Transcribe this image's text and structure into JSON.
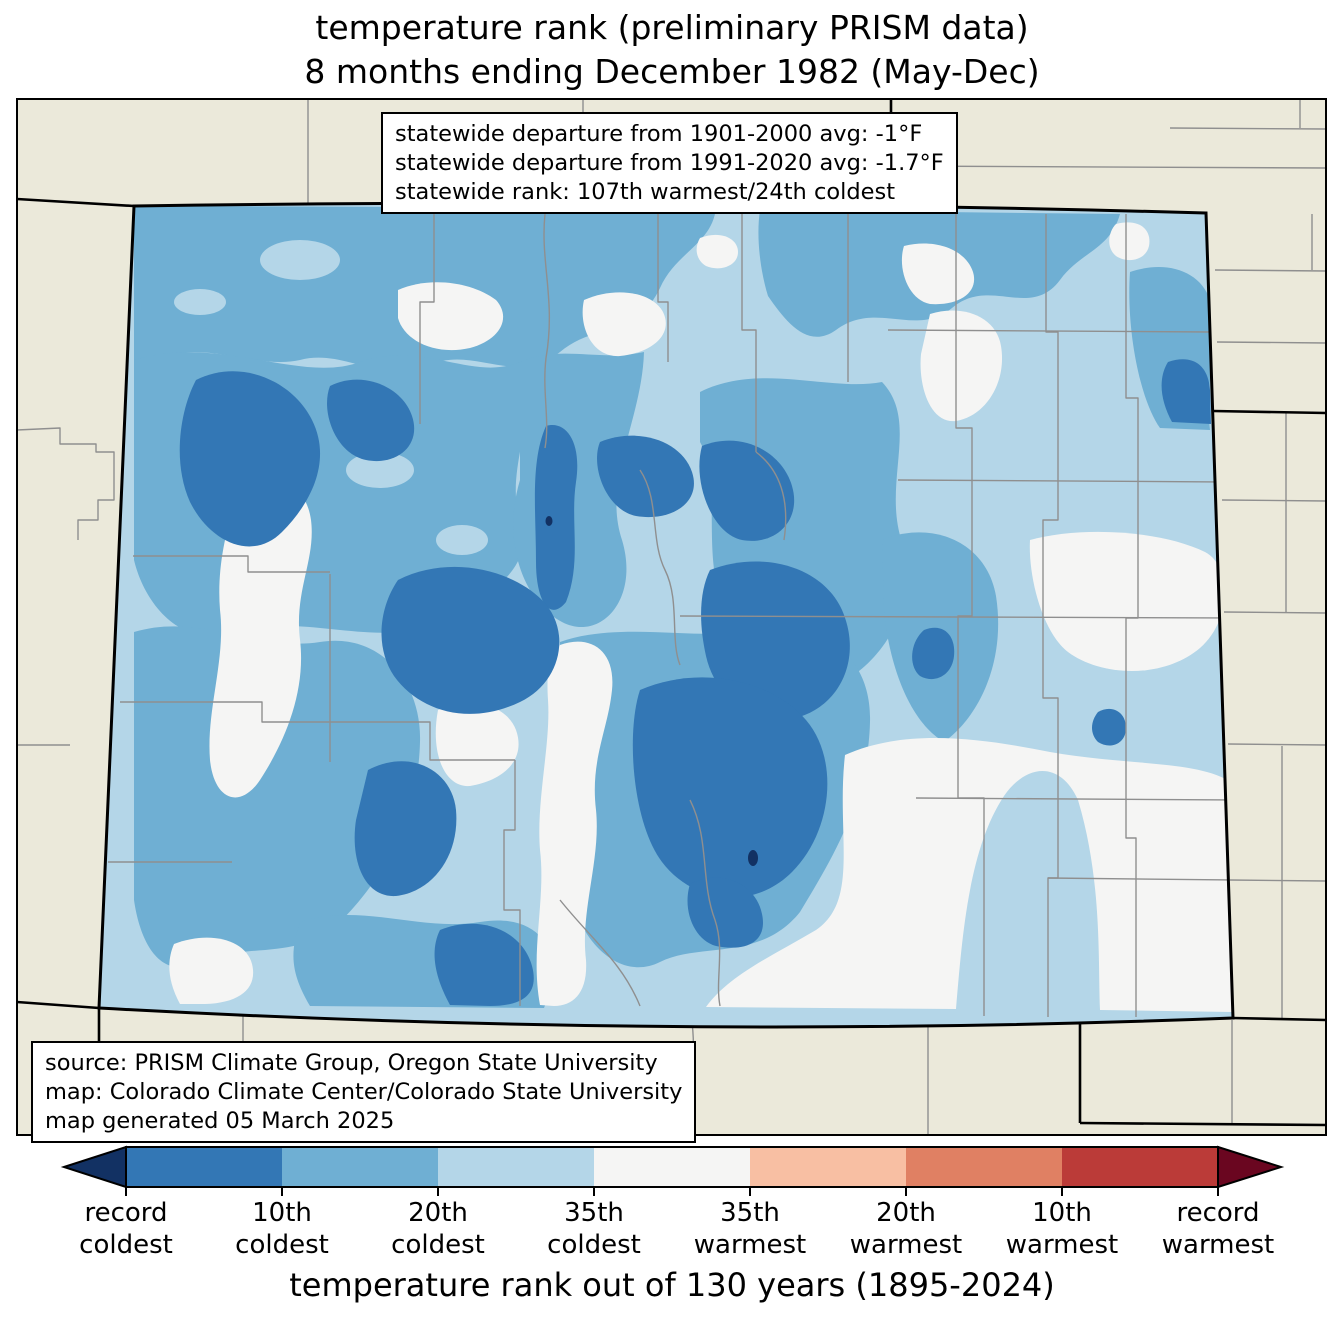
{
  "figure": {
    "title_line1": "temperature rank (preliminary PRISM data)",
    "title_line2": "8 months ending December 1982 (May-Dec)"
  },
  "stats_box": {
    "lines": [
      "statewide departure from 1901-2000 avg: -1°F",
      "statewide departure from 1991-2020 avg: -1.7°F",
      "statewide rank: 107th warmest/24th coldest"
    ]
  },
  "source_box": {
    "lines": [
      "source: PRISM Climate Group, Oregon State University",
      "map: Colorado Climate Center/Colorado State University",
      "map generated 05 March 2025"
    ]
  },
  "map": {
    "region_label": "Colorado temperature-rank map with county boundaries",
    "palette": {
      "outside_land": "#ebe9da",
      "county_line": "#8f8f8f",
      "rank_near_normal_white": "#f5f5f4",
      "rank_20_35_coldest_light_blue": "#b4d6e8",
      "rank_10_20_coldest_medium_blue": "#6fafd3",
      "rank_top10_coldest_strong_blue": "#3377b5",
      "rank_record_coldest_navy": "#123163"
    }
  },
  "colorbar": {
    "axis_title": "temperature rank out of 130 years (1895-2024)",
    "tick_labels": [
      "record\ncoldest",
      "10th\ncoldest",
      "20th\ncoldest",
      "35th\ncoldest",
      "35th\nwarmest",
      "20th\nwarmest",
      "10th\nwarmest",
      "record\nwarmest"
    ],
    "segment_colors": [
      "#3377b5",
      "#6fafd3",
      "#b4d6e8",
      "#f5f5f4",
      "#f8bfa3",
      "#e08063",
      "#bb3b38"
    ],
    "arrow_left_color": "#123163",
    "arrow_right_color": "#6a0620"
  }
}
